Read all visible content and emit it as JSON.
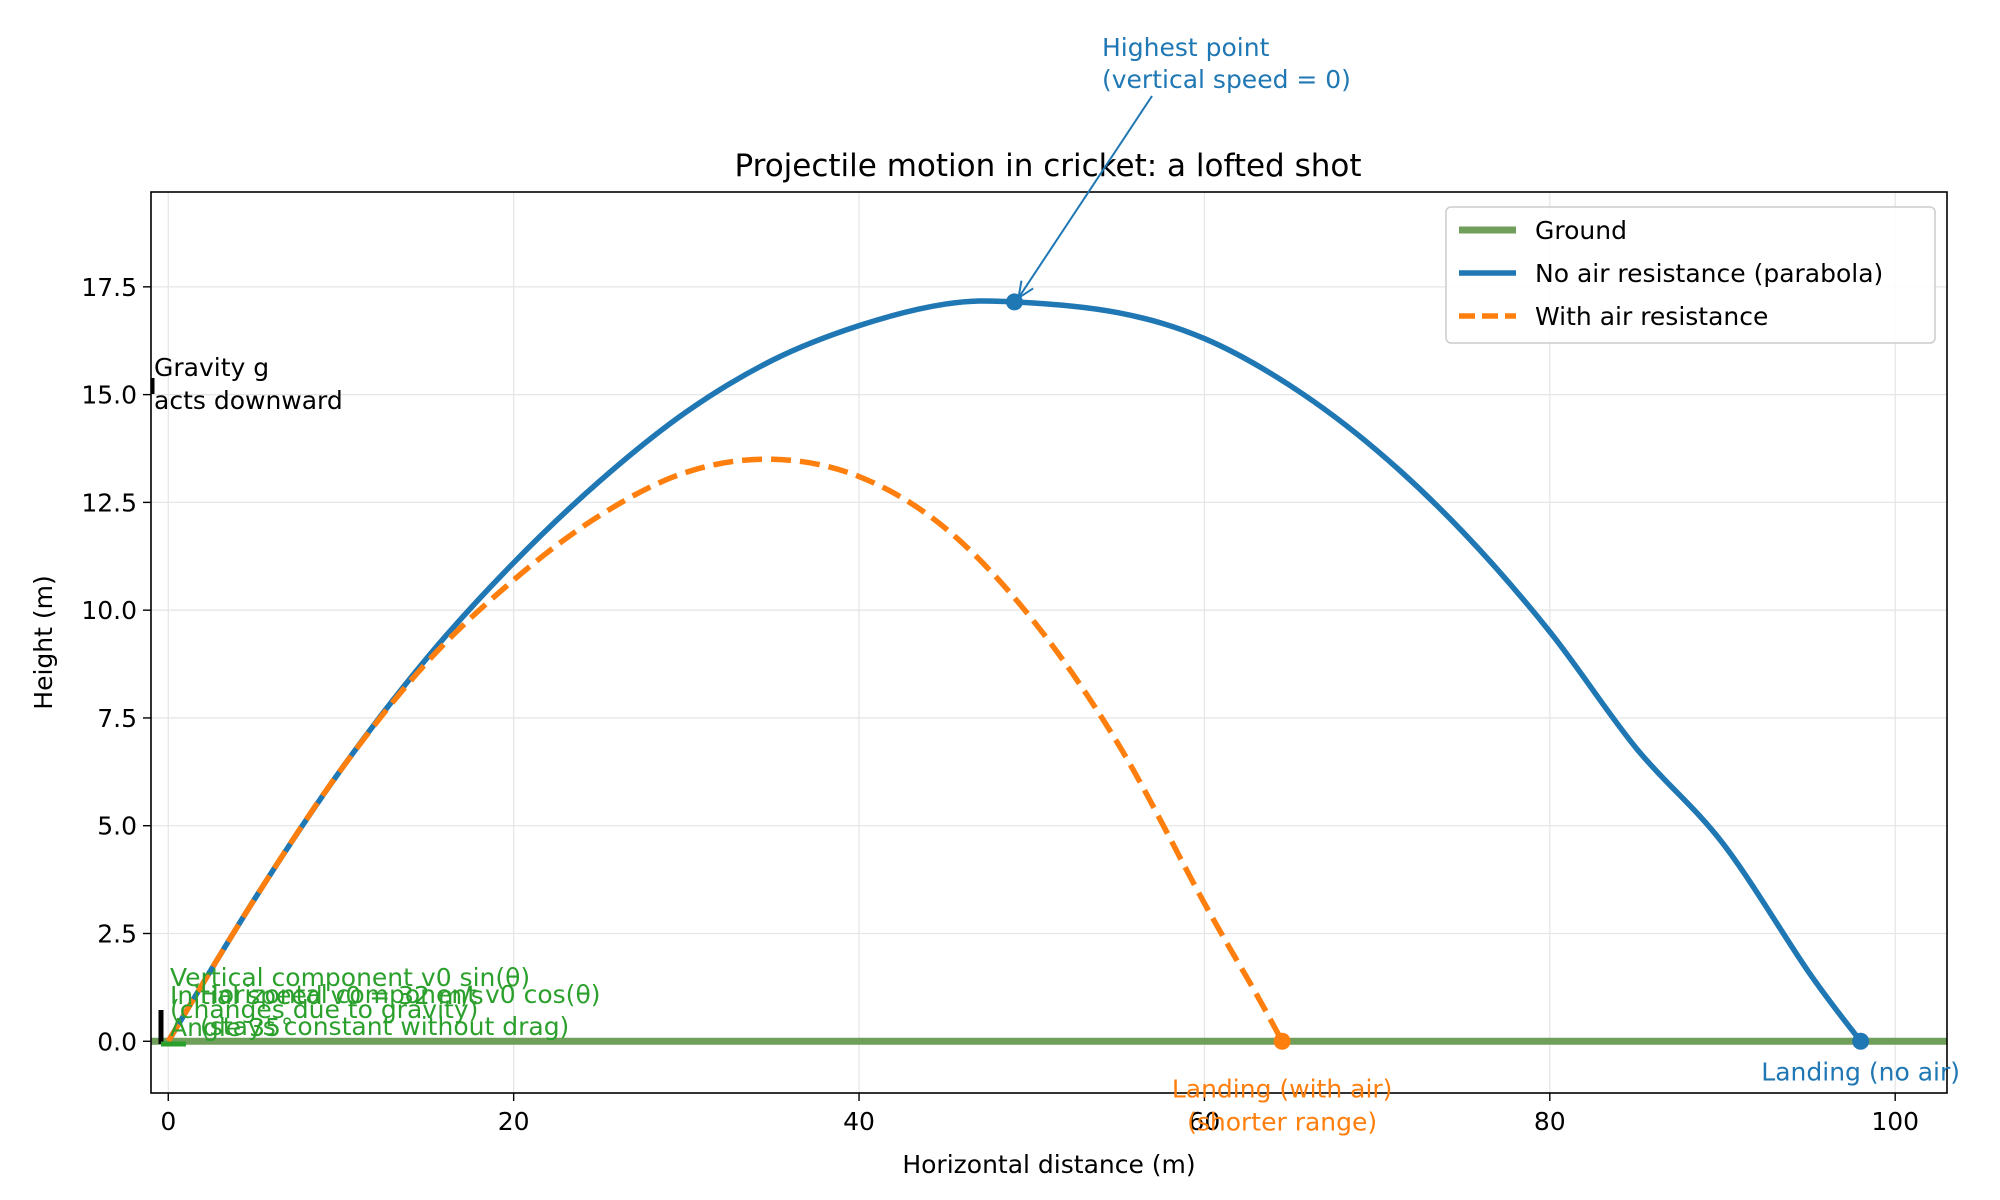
{
  "chart_data": {
    "type": "line",
    "title": "Projectile motion in cricket: a lofted shot",
    "xlabel": "Horizontal distance (m)",
    "ylabel": "Height (m)",
    "xlim": [
      -1,
      103
    ],
    "ylim": [
      -1.2,
      19.7
    ],
    "xticks": [
      0,
      20,
      40,
      60,
      80,
      100
    ],
    "xtick_labels": [
      "0",
      "20",
      "40",
      "60",
      "80",
      "100"
    ],
    "yticks": [
      0,
      2.5,
      5,
      7.5,
      10,
      12.5,
      15,
      17.5
    ],
    "ytick_labels": [
      "0.0",
      "2.5",
      "5.0",
      "7.5",
      "10.0",
      "12.5",
      "15.0",
      "17.5"
    ],
    "grid": true,
    "legend_position": "top-right",
    "colors": {
      "ground": "#6f9f5a",
      "no_air": "#1f77b4",
      "with_air": "#ff7f0e",
      "components": "#2ca02c",
      "gravity": "#000000"
    },
    "series": [
      {
        "name": "Ground",
        "style": "solid",
        "x": [
          -1,
          103
        ],
        "y": [
          0,
          0
        ]
      },
      {
        "name": "No air resistance (parabola)",
        "style": "solid",
        "x": [
          0,
          5,
          10,
          15,
          20,
          25,
          30,
          35,
          40,
          45,
          49,
          55,
          60,
          65,
          70,
          75,
          80,
          85,
          90,
          95,
          98
        ],
        "y": [
          0,
          3.3,
          6.3,
          8.9,
          11.1,
          13.0,
          14.6,
          15.8,
          16.6,
          17.1,
          17.15,
          16.9,
          16.3,
          15.2,
          13.7,
          11.8,
          9.5,
          6.8,
          4.6,
          1.6,
          0
        ]
      },
      {
        "name": "With air resistance",
        "style": "dashed",
        "x": [
          0,
          5,
          10,
          15,
          20,
          25,
          30,
          35,
          40,
          45,
          50,
          55,
          60,
          63,
          64.5
        ],
        "y": [
          0,
          3.3,
          6.3,
          8.8,
          10.7,
          12.2,
          13.2,
          13.5,
          13.1,
          11.9,
          9.8,
          6.9,
          3.2,
          1.1,
          0
        ]
      }
    ],
    "markers": [
      {
        "series": "No air resistance (parabola)",
        "x": 49,
        "y": 17.15
      },
      {
        "series": "No air resistance (parabola)",
        "x": 98,
        "y": 0
      },
      {
        "series": "With air resistance",
        "x": 64.5,
        "y": 0
      }
    ],
    "annotations": {
      "highest_point": {
        "lines": [
          "Highest point",
          "(vertical speed = 0)"
        ],
        "x": 49,
        "y": 17.15
      },
      "landing_no_air": {
        "lines": [
          "Landing (no air)"
        ],
        "x": 98,
        "y": 0
      },
      "landing_with_air": {
        "lines": [
          "Landing (with air)",
          "(shorter range)"
        ],
        "x": 64.5,
        "y": 0
      },
      "gravity": {
        "lines": [
          "Gravity g",
          "acts downward"
        ]
      },
      "vertical_component": {
        "lines": [
          "Vertical component v0 sin(θ)",
          "(changes due to gravity)"
        ]
      },
      "horizontal_component": {
        "lines": [
          "Horizontal component v0 cos(θ)",
          "(stays constant without drag)"
        ]
      },
      "initial_speed": {
        "lines": [
          "Initial speed v0 = 32 m/s",
          "Angle 35°"
        ]
      }
    }
  }
}
